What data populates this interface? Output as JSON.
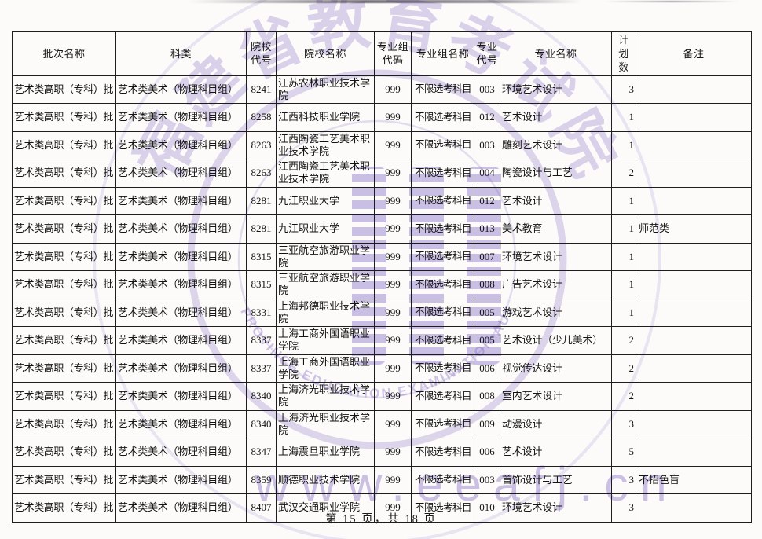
{
  "watermark": {
    "seal_cn": "福建省教育考试院",
    "seal_en": "FUJIAN PROVINCE EDUCATION EXAMINATION AUTHORITY",
    "url": "www.eeafj.cn"
  },
  "footer": {
    "page_indicator": "第 15 页，共 18 页"
  },
  "colors": {
    "watermark_purple": "#8a6fc8",
    "table_border": "#1d1d1d",
    "text": "#141414"
  },
  "table": {
    "headers": [
      "批次名称",
      "科类",
      "院校\n代号",
      "院校名称",
      "专业组\n代码",
      "专业组名称",
      "专业\n代号",
      "专业名称",
      "计划\n数",
      "备注"
    ],
    "column_keys": [
      "batch-name",
      "subject-type",
      "college-code",
      "college-name",
      "group-code",
      "group-name",
      "major-code",
      "major-name",
      "plan-count",
      "remark"
    ],
    "rows": [
      [
        "艺术类高职（专科）批",
        "艺术类美术（物理科目组）",
        "8241",
        "江苏农林职业技术学院",
        "999",
        "不限选考科目",
        "003",
        "环境艺术设计",
        "3",
        ""
      ],
      [
        "艺术类高职（专科）批",
        "艺术类美术（物理科目组）",
        "8258",
        "江西科技职业学院",
        "999",
        "不限选考科目",
        "012",
        "艺术设计",
        "1",
        ""
      ],
      [
        "艺术类高职（专科）批",
        "艺术类美术（物理科目组）",
        "8263",
        "江西陶瓷工艺美术职业技术学院",
        "999",
        "不限选考科目",
        "003",
        "雕刻艺术设计",
        "1",
        ""
      ],
      [
        "艺术类高职（专科）批",
        "艺术类美术（物理科目组）",
        "8263",
        "江西陶瓷工艺美术职业技术学院",
        "999",
        "不限选考科目",
        "004",
        "陶瓷设计与工艺",
        "2",
        ""
      ],
      [
        "艺术类高职（专科）批",
        "艺术类美术（物理科目组）",
        "8281",
        "九江职业大学",
        "999",
        "不限选考科目",
        "012",
        "艺术设计",
        "1",
        ""
      ],
      [
        "艺术类高职（专科）批",
        "艺术类美术（物理科目组）",
        "8281",
        "九江职业大学",
        "999",
        "不限选考科目",
        "013",
        "美术教育",
        "1",
        "师范类"
      ],
      [
        "艺术类高职（专科）批",
        "艺术类美术（物理科目组）",
        "8315",
        "三亚航空旅游职业学院",
        "999",
        "不限选考科目",
        "007",
        "环境艺术设计",
        "1",
        ""
      ],
      [
        "艺术类高职（专科）批",
        "艺术类美术（物理科目组）",
        "8315",
        "三亚航空旅游职业学院",
        "999",
        "不限选考科目",
        "008",
        "广告艺术设计",
        "1",
        ""
      ],
      [
        "艺术类高职（专科）批",
        "艺术类美术（物理科目组）",
        "8331",
        "上海邦德职业技术学院",
        "999",
        "不限选考科目",
        "005",
        "游戏艺术设计",
        "1",
        ""
      ],
      [
        "艺术类高职（专科）批",
        "艺术类美术（物理科目组）",
        "8337",
        "上海工商外国语职业学院",
        "999",
        "不限选考科目",
        "005",
        "艺术设计（少儿美术）",
        "2",
        ""
      ],
      [
        "艺术类高职（专科）批",
        "艺术类美术（物理科目组）",
        "8337",
        "上海工商外国语职业学院",
        "999",
        "不限选考科目",
        "006",
        "视觉传达设计",
        "2",
        ""
      ],
      [
        "艺术类高职（专科）批",
        "艺术类美术（物理科目组）",
        "8340",
        "上海济光职业技术学院",
        "999",
        "不限选考科目",
        "008",
        "室内艺术设计",
        "2",
        ""
      ],
      [
        "艺术类高职（专科）批",
        "艺术类美术（物理科目组）",
        "8340",
        "上海济光职业技术学院",
        "999",
        "不限选考科目",
        "009",
        "动漫设计",
        "3",
        ""
      ],
      [
        "艺术类高职（专科）批",
        "艺术类美术（物理科目组）",
        "8347",
        "上海震旦职业学院",
        "999",
        "不限选考科目",
        "006",
        "艺术设计",
        "5",
        ""
      ],
      [
        "艺术类高职（专科）批",
        "艺术类美术（物理科目组）",
        "8359",
        "顺德职业技术学院",
        "999",
        "不限选考科目",
        "003",
        "首饰设计与工艺",
        "3",
        "不招色盲"
      ],
      [
        "艺术类高职（专科）批",
        "艺术类美术（物理科目组）",
        "8407",
        "武汉交通职业学院",
        "999",
        "不限选考科目",
        "010",
        "环境艺术设计",
        "3",
        ""
      ]
    ]
  }
}
